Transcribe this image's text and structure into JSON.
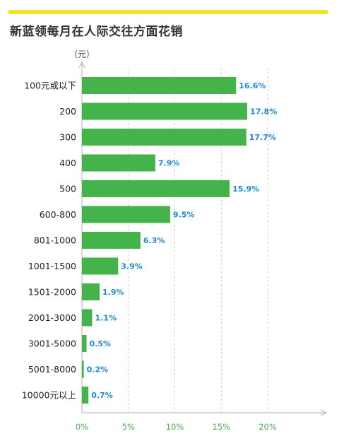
{
  "title": "新蓝领每月在人际交往方面花销",
  "unit": "（元）",
  "colors": {
    "accent_bar": "#f5e024",
    "bar": "#43b34a",
    "value_label": "#1f8ad6",
    "tick_label": "#4caf50"
  },
  "chart_data": {
    "type": "bar",
    "orientation": "horizontal",
    "title": "新蓝领每月在人际交往方面花销",
    "ylabel": "（元）",
    "xlabel": "",
    "categories": [
      "100元或以下",
      "200",
      "300",
      "400",
      "500",
      "600-800",
      "801-1000",
      "1001-1500",
      "1501-2000",
      "2001-3000",
      "3001-5000",
      "5001-8000",
      "10000元以上"
    ],
    "values": [
      16.6,
      17.8,
      17.7,
      7.9,
      15.9,
      9.5,
      6.3,
      3.9,
      1.9,
      1.1,
      0.5,
      0.2,
      0.7
    ],
    "value_labels": [
      "16.6%",
      "17.8%",
      "17.7%",
      "7.9%",
      "15.9%",
      "9.5%",
      "6.3%",
      "3.9%",
      "1.9%",
      "1.1%",
      "0.5%",
      "0.2%",
      "0.7%"
    ],
    "xticks": [
      0,
      5,
      10,
      15,
      20
    ],
    "xtick_labels": [
      "0%",
      "5%",
      "10%",
      "15%",
      "20%"
    ],
    "xlim": [
      0,
      25
    ],
    "grid": "vertical dashed"
  }
}
